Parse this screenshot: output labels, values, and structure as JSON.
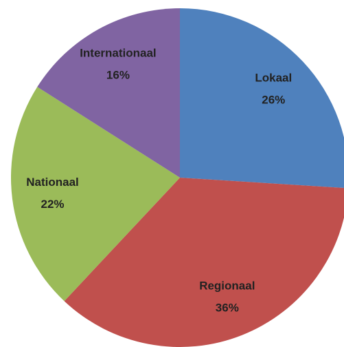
{
  "chart_data": {
    "type": "pie",
    "categories": [
      "Lokaal",
      "Regionaal",
      "Nationaal",
      "Internationaal"
    ],
    "values": [
      26,
      36,
      22,
      16
    ],
    "value_labels": [
      "26%",
      "36%",
      "22%",
      "16%"
    ],
    "colors": [
      "#4f81bd",
      "#c0504d",
      "#9bbb59",
      "#8064a2"
    ]
  }
}
